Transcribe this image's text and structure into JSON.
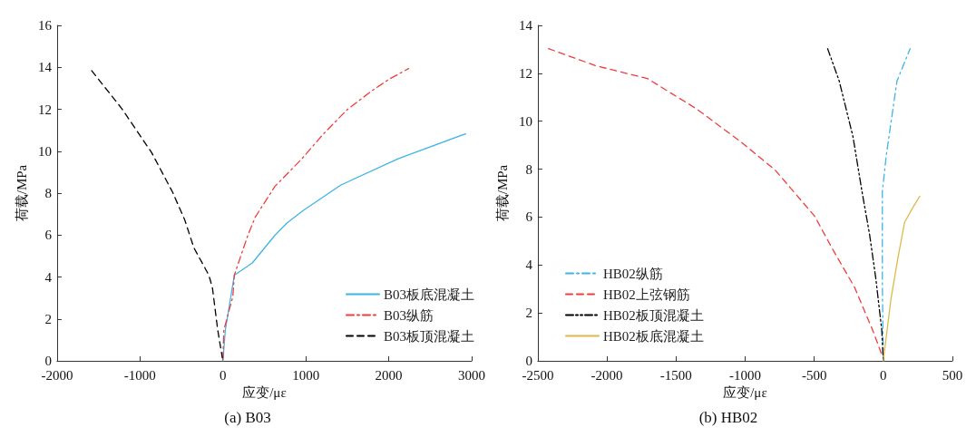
{
  "chart_data": [
    {
      "type": "line",
      "title": "(a) B03",
      "xlabel": "应变/με",
      "ylabel": "荷载/MPa",
      "xlim": [
        -2000,
        3000
      ],
      "xticks": [
        -2000,
        -1000,
        0,
        1000,
        2000,
        3000
      ],
      "ylim": [
        0,
        16
      ],
      "yticks": [
        0,
        2,
        4,
        6,
        8,
        10,
        12,
        14,
        16
      ],
      "grid": false,
      "legend": "bottom right",
      "marker": "none",
      "series": [
        {
          "name": "B03板底混凝土",
          "color": "#3fb4e6",
          "line_style": "solid",
          "x": [
            0,
            29,
            138,
            355,
            627,
            772,
            971,
            1424,
            2112,
            2928
          ],
          "values": [
            0,
            1.46,
            4.09,
            4.67,
            5.99,
            6.57,
            7.18,
            8.39,
            9.64,
            10.83
          ]
        },
        {
          "name": "B03纵筋",
          "color": "#f03c3c",
          "line_style": "dashdot",
          "x": [
            0,
            11,
            120,
            138,
            301,
            391,
            627,
            953,
            1207,
            1496,
            1786,
            2004,
            2239
          ],
          "values": [
            0.07,
            1.46,
            3.07,
            4.09,
            5.99,
            6.86,
            8.32,
            9.64,
            10.8,
            11.97,
            12.85,
            13.43,
            13.94
          ]
        },
        {
          "name": "B03板顶混凝土",
          "color": "#000000",
          "line_style": "dashed",
          "x": [
            -1583,
            -1221,
            -859,
            -605,
            -460,
            -351,
            -170,
            -127,
            -62,
            -7
          ],
          "values": [
            13.84,
            12.04,
            9.93,
            8.03,
            6.72,
            5.4,
            4.09,
            3.5,
            1.46,
            0.15
          ]
        }
      ]
    },
    {
      "type": "line",
      "title": "(b) HB02",
      "xlabel": "应变/με",
      "ylabel": "荷载/MPa",
      "xlim": [
        -2500,
        500
      ],
      "xticks": [
        -2500,
        -2000,
        -1500,
        -1000,
        -500,
        0,
        500
      ],
      "ylim": [
        0,
        14
      ],
      "yticks": [
        0,
        2,
        4,
        6,
        8,
        10,
        12,
        14
      ],
      "grid": false,
      "legend": "bottom left",
      "marker": "none",
      "series": [
        {
          "name": "HB02纵筋",
          "color": "#3fb4e6",
          "line_style": "dashdot",
          "x": [
            0,
            -7,
            -7,
            22,
            99,
            194
          ],
          "values": [
            0,
            3.21,
            7.06,
            8.6,
            11.68,
            13.03
          ]
        },
        {
          "name": "HB02上弦钢筋",
          "color": "#f03c3c",
          "line_style": "dashed",
          "x": [
            -2423,
            -2082,
            -1707,
            -1355,
            -1024,
            -782,
            -496,
            -363,
            -209,
            -77,
            -11
          ],
          "values": [
            13.03,
            12.32,
            11.78,
            10.53,
            9.11,
            7.96,
            6.03,
            4.62,
            3.08,
            1.28,
            0.26
          ]
        },
        {
          "name": "HB02板顶混凝土",
          "color": "#000000",
          "line_style": "dashdotdot",
          "x": [
            -403,
            -319,
            -220,
            -154,
            -99,
            -55,
            -11,
            0
          ],
          "values": [
            13.03,
            11.68,
            9.37,
            7.06,
            5.26,
            3.47,
            1.28,
            0
          ]
        },
        {
          "name": "HB02板底混凝土",
          "color": "#e0b84a",
          "line_style": "solid",
          "x": [
            0,
            55,
            104,
            154,
            209,
            264
          ],
          "values": [
            0,
            2.57,
            4.24,
            5.78,
            6.35,
            6.87
          ]
        }
      ]
    }
  ]
}
